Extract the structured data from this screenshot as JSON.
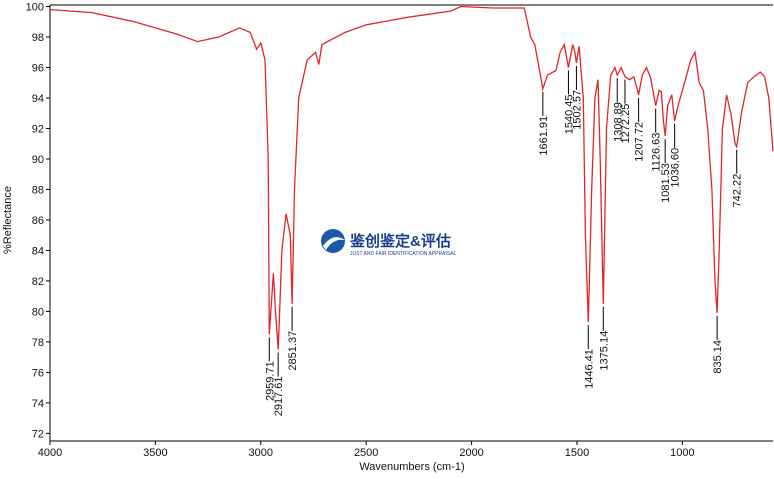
{
  "chart_data": {
    "type": "line",
    "xlabel": "Wavenumbers (cm-1)",
    "ylabel": "%Reflectance",
    "watermark": "鉴创鉴定&评估",
    "watermark_sub": "JUST AND FAIR IDENTIFICATION APPRAISAL",
    "xlim": [
      4000,
      570
    ],
    "ylim": [
      71.5,
      100.1
    ],
    "xticks": [
      4000,
      3500,
      3000,
      2500,
      2000,
      1500,
      1000
    ],
    "yticks": [
      72,
      74,
      76,
      78,
      80,
      82,
      84,
      86,
      88,
      90,
      92,
      94,
      96,
      98,
      100
    ],
    "series": [
      {
        "color": "#e0262b",
        "x": [
          4000,
          3800,
          3600,
          3400,
          3300,
          3200,
          3100,
          3050,
          3020,
          3000,
          2980,
          2965,
          2959.71,
          2940,
          2930,
          2917.61,
          2900,
          2880,
          2860,
          2851.37,
          2840,
          2820,
          2780,
          2740,
          2725,
          2710,
          2600,
          2500,
          2300,
          2100,
          2050,
          1900,
          1750,
          1720,
          1700,
          1680,
          1661.91,
          1640,
          1600,
          1580,
          1560,
          1540.45,
          1520,
          1510,
          1502.57,
          1490,
          1470,
          1460,
          1446.41,
          1430,
          1415,
          1400,
          1390,
          1375.14,
          1360,
          1340,
          1320,
          1308.89,
          1290,
          1272.25,
          1250,
          1230,
          1207.72,
          1190,
          1170,
          1150,
          1126.63,
          1110,
          1100,
          1090,
          1081.53,
          1070,
          1050,
          1036.6,
          1020,
          1000,
          960,
          940,
          920,
          900,
          880,
          860,
          845,
          835.14,
          825,
          810,
          790,
          770,
          750,
          742.22,
          720,
          690,
          660,
          630,
          610,
          590,
          570
        ],
        "values": [
          99.8,
          99.6,
          99.0,
          98.2,
          97.7,
          98.0,
          98.6,
          98.3,
          97.2,
          97.6,
          96.5,
          90,
          78.5,
          82.5,
          80,
          77.5,
          84,
          86.4,
          85,
          80.5,
          88,
          94,
          96.5,
          97,
          96.2,
          97.5,
          98.3,
          98.8,
          99.3,
          99.7,
          100,
          99.9,
          99.9,
          98,
          97.5,
          96,
          94.6,
          95.5,
          95.8,
          97,
          97.5,
          96.0,
          97.5,
          97.0,
          96.3,
          97.4,
          94,
          85,
          79.3,
          88,
          94,
          95.2,
          90,
          80.5,
          92,
          95.5,
          96,
          95.5,
          96,
          95.4,
          95.2,
          95.4,
          94.2,
          95.5,
          96,
          95.3,
          93.5,
          94.5,
          94.4,
          92.5,
          91.5,
          93.5,
          94.2,
          92.5,
          93.5,
          94.5,
          96.5,
          97,
          95,
          94.5,
          92,
          88,
          82,
          79.9,
          84,
          92,
          94.2,
          93,
          91,
          90.8,
          93,
          95,
          95.4,
          95.7,
          95.4,
          94,
          90.5
        ]
      }
    ],
    "peaks": [
      2959.71,
      2917.61,
      2851.37,
      1661.91,
      1540.45,
      1502.57,
      1446.41,
      1375.14,
      1308.89,
      1272.25,
      1207.72,
      1126.63,
      1081.53,
      {
        "value": 1036.6,
        "label": "1036.60"
      },
      835.14,
      742.22
    ]
  }
}
